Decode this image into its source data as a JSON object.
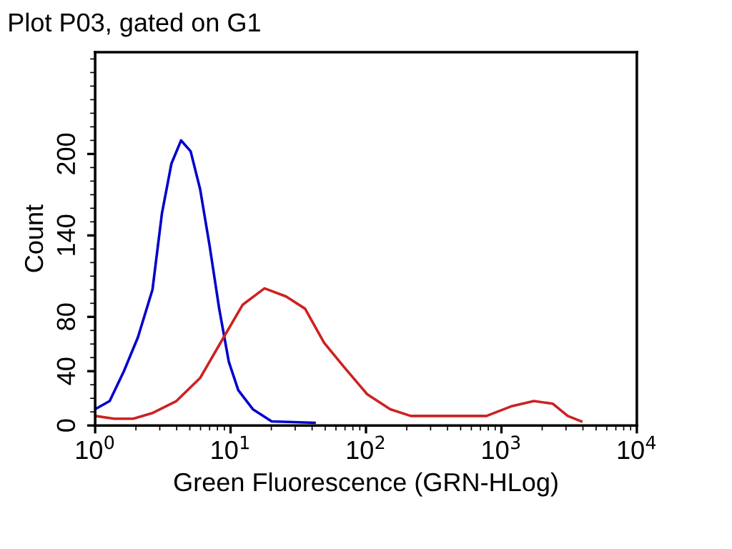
{
  "chart_data": {
    "type": "line",
    "title": "Plot P03, gated on G1",
    "xlabel": "Green Fluorescence (GRN-HLog)",
    "ylabel": "Count",
    "log": "x",
    "xlim": [
      1,
      10000
    ],
    "xticks": [
      {
        "value": 1,
        "label": "10$^{0}$"
      },
      {
        "value": 10,
        "label": "10$^{1}$"
      },
      {
        "value": 100,
        "label": "10$^{2}$"
      },
      {
        "value": 1000,
        "label": "10$^{3}$"
      },
      {
        "value": 10000,
        "label": "10$^{4}$"
      }
    ],
    "ylim": [
      0,
      275
    ],
    "yticks": [
      0,
      40,
      80,
      140,
      200
    ],
    "grid": false,
    "legend": false,
    "marker": "none",
    "line_style": "solid",
    "series": [
      {
        "color": "#0000cc",
        "x": [
          1,
          1.28,
          1.63,
          2.07,
          2.65,
          3.11,
          3.66,
          4.31,
          5.07,
          5.96,
          7.01,
          8.24,
          9.7,
          11.4,
          14.6,
          20.1,
          41.7
        ],
        "values": [
          12,
          18,
          40,
          65,
          100,
          156,
          193,
          210,
          202,
          174,
          132,
          86,
          47,
          26,
          12,
          3,
          2
        ]
      },
      {
        "color": "#cc2222",
        "x": [
          1,
          1.38,
          1.91,
          2.63,
          3.98,
          5.96,
          8.9,
          12.3,
          17.8,
          25.7,
          35.5,
          49,
          67.6,
          102,
          151,
          214,
          347,
          776,
          1175,
          1738,
          2399,
          3090,
          3890
        ],
        "values": [
          7,
          5,
          5,
          9,
          18,
          35,
          65,
          89,
          101,
          95,
          86,
          61,
          44,
          23,
          12,
          7,
          7,
          7,
          14,
          18,
          16,
          7,
          3
        ]
      }
    ]
  }
}
